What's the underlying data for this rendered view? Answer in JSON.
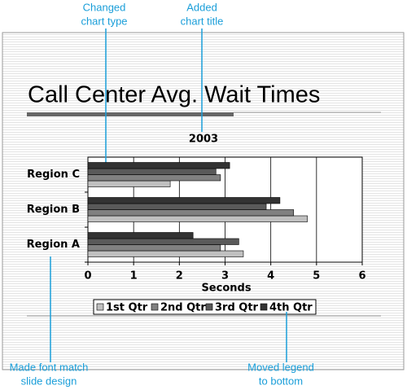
{
  "chart_data": {
    "type": "hbar",
    "slide_title": "Call Center Avg. Wait Times",
    "title": "2003",
    "x_label": "Seconds",
    "categories": [
      "Region A",
      "Region B",
      "Region C"
    ],
    "series": [
      {
        "name": "1st Qtr",
        "color": "#c0c0c0",
        "values": [
          3.4,
          4.8,
          1.8
        ]
      },
      {
        "name": "2nd Qtr",
        "color": "#808080",
        "values": [
          2.9,
          4.5,
          2.9
        ]
      },
      {
        "name": "3rd Qtr",
        "color": "#5a5a5a",
        "values": [
          3.3,
          3.9,
          2.8
        ]
      },
      {
        "name": "4th Qtr",
        "color": "#333333",
        "values": [
          2.3,
          4.2,
          3.1
        ]
      }
    ],
    "xlim": [
      0,
      6
    ],
    "xticks": [
      0,
      1,
      2,
      3,
      4,
      5,
      6
    ],
    "grid": true,
    "legend": "bottom"
  },
  "callouts": [
    {
      "lines": [
        "Changed",
        "chart type"
      ]
    },
    {
      "lines": [
        "Added",
        "chart title"
      ]
    },
    {
      "lines": [
        "Made font match",
        "slide design"
      ]
    },
    {
      "lines": [
        "Moved legend",
        "to bottom"
      ]
    }
  ]
}
